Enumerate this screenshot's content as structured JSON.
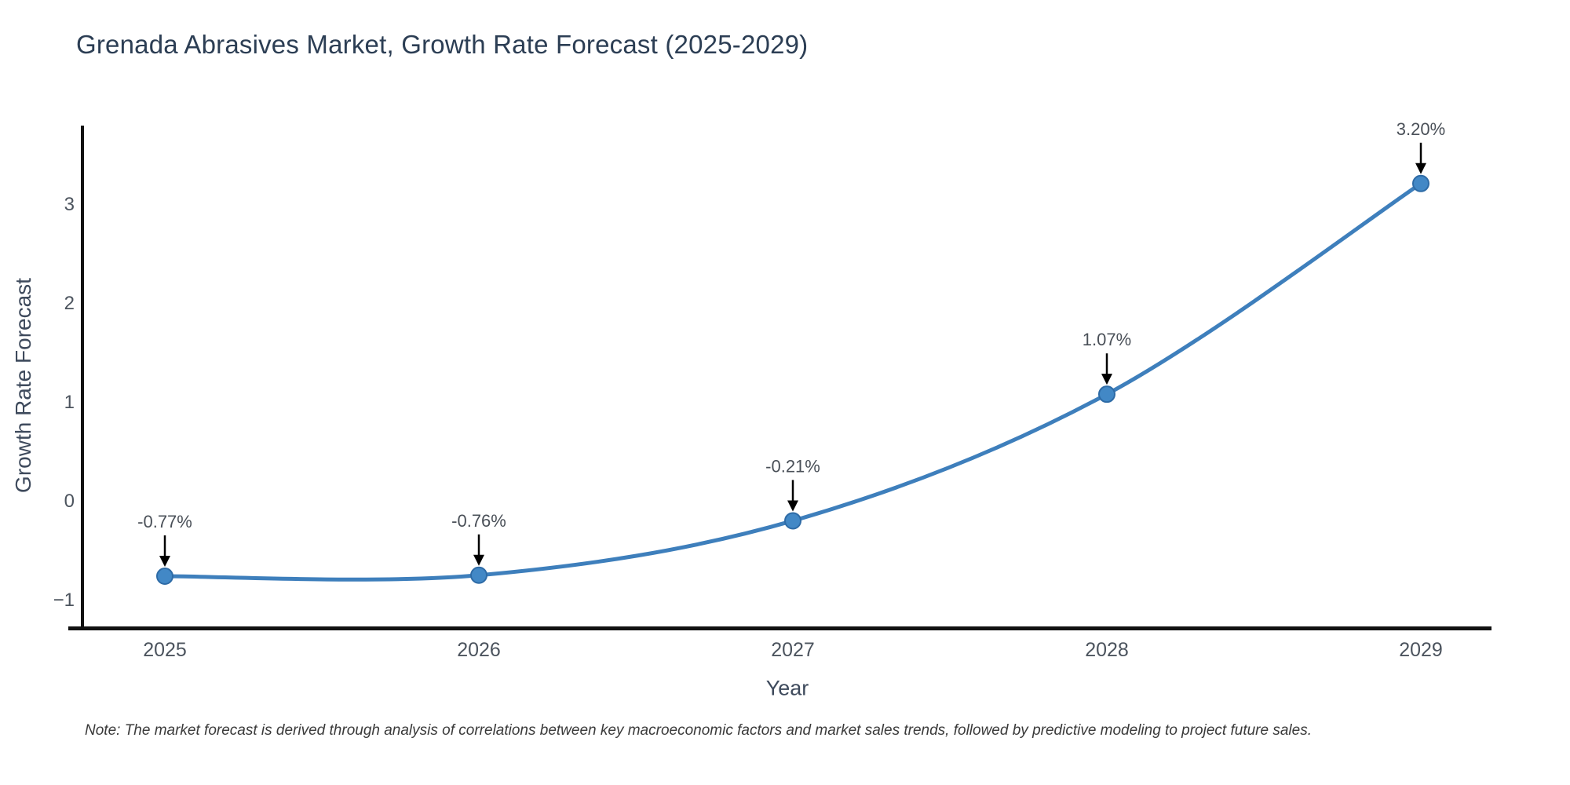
{
  "chart_data": {
    "type": "line",
    "title": "Grenada Abrasives Market, Growth Rate Forecast (2025-2029)",
    "xlabel": "Year",
    "ylabel": "Growth Rate Forecast",
    "x": [
      2025,
      2026,
      2027,
      2028,
      2029
    ],
    "x_tick_labels": [
      "2025",
      "2026",
      "2027",
      "2028",
      "2029"
    ],
    "values": [
      -0.77,
      -0.76,
      -0.21,
      1.07,
      3.2
    ],
    "point_labels": [
      "-0.77%",
      "-0.76%",
      "-0.21%",
      "1.07%",
      "3.20%"
    ],
    "y_ticks": [
      {
        "value": -1,
        "label": "−1"
      },
      {
        "value": 0,
        "label": "0"
      },
      {
        "value": 1,
        "label": "1"
      },
      {
        "value": 2,
        "label": "2"
      },
      {
        "value": 3,
        "label": "3"
      }
    ],
    "ylim": [
      -1.3,
      3.8
    ],
    "xlim": [
      2024.7,
      2029.25
    ],
    "grid": false,
    "legend": "none",
    "note": "Note: The market forecast is derived through analysis of correlations between key macroeconomic factors and market sales trends, followed by predictive modeling to project future sales.",
    "colors": {
      "line": "#3e7fbc",
      "marker_fill": "#4288c6",
      "marker_stroke": "#2e6ba6",
      "arrow": "#000000",
      "axis_spine": "#111111",
      "title_text": "#2c3e54",
      "axis_label_text": "#3e4a5c",
      "tick_text": "#4c545e",
      "annotation_text": "#4a5058",
      "note_text": "#3a3a3a"
    }
  }
}
